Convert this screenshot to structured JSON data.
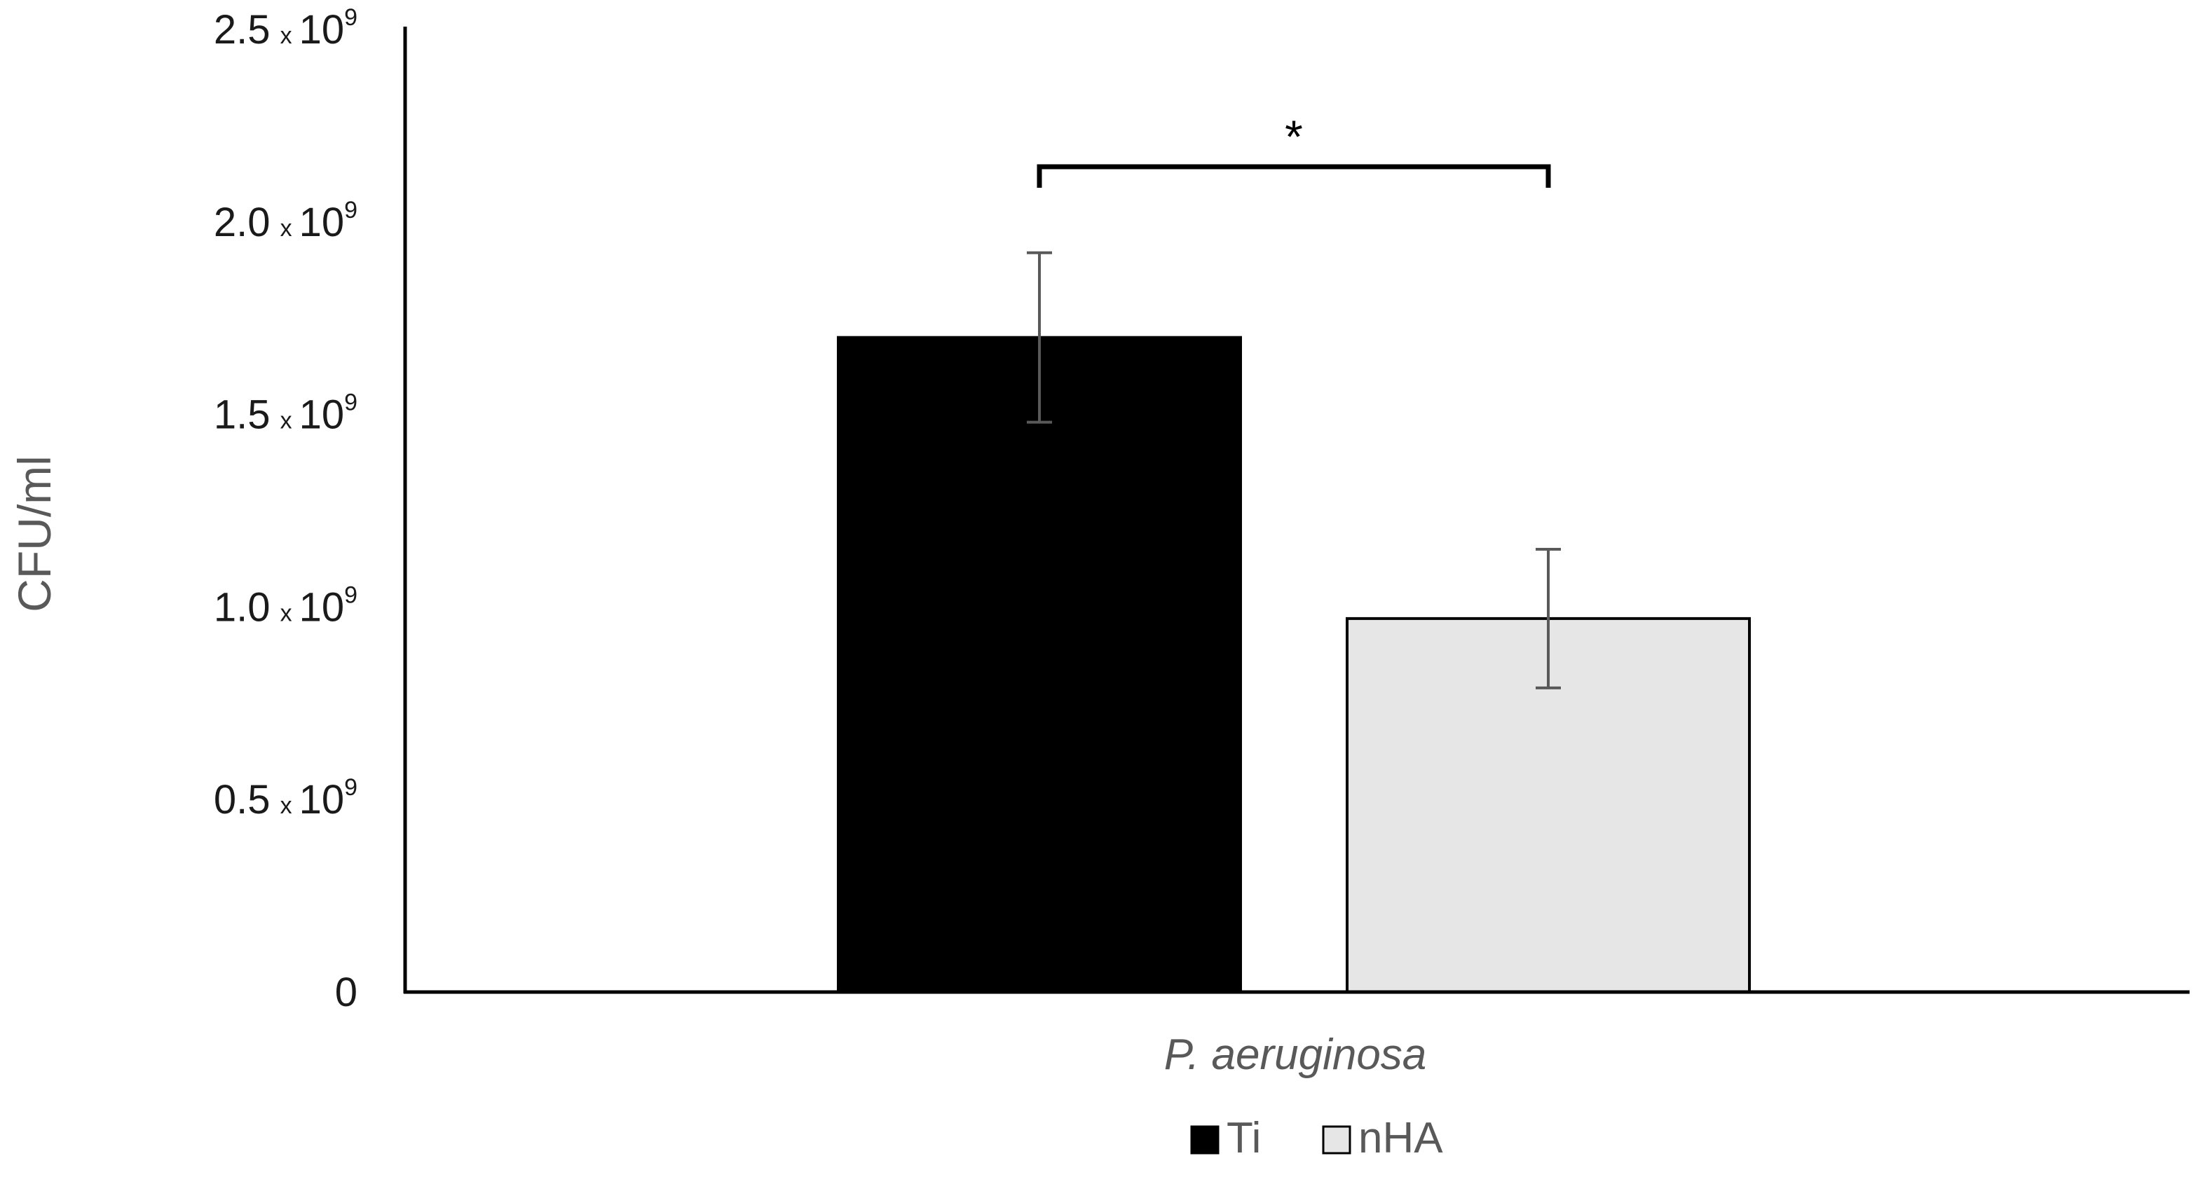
{
  "chart_data": {
    "type": "bar",
    "categories": [
      "P. aeruginosa"
    ],
    "series": [
      {
        "name": "Ti",
        "values": [
          1700000000.0
        ],
        "error": [
          220000000.0
        ],
        "color": "#000000"
      },
      {
        "name": "nHA",
        "values": [
          970000000.0
        ],
        "error": [
          180000000.0
        ],
        "color": "#e6e6e6"
      }
    ],
    "ylabel": "CFU/ml",
    "xlabel": "",
    "ylim": [
      0,
      2500000000.0
    ],
    "yticks": [
      {
        "value": 0,
        "mantissa": "0",
        "times": "",
        "base": "",
        "exponent": ""
      },
      {
        "value": 500000000.0,
        "mantissa": "0.5",
        "times": "x",
        "base": "10",
        "exponent": "9"
      },
      {
        "value": 1000000000.0,
        "mantissa": "1.0",
        "times": "x",
        "base": "10",
        "exponent": "9"
      },
      {
        "value": 1500000000.0,
        "mantissa": "1.5",
        "times": "x",
        "base": "10",
        "exponent": "9"
      },
      {
        "value": 2000000000.0,
        "mantissa": "2.0",
        "times": "x",
        "base": "10",
        "exponent": "9"
      },
      {
        "value": 2500000000.0,
        "mantissa": "2.5",
        "times": "x",
        "base": "10",
        "exponent": "9"
      }
    ],
    "grid": false,
    "legend_position": "bottom",
    "annotations": [
      {
        "type": "significance-bracket",
        "text": "*",
        "between": [
          "Ti",
          "nHA"
        ]
      }
    ]
  }
}
